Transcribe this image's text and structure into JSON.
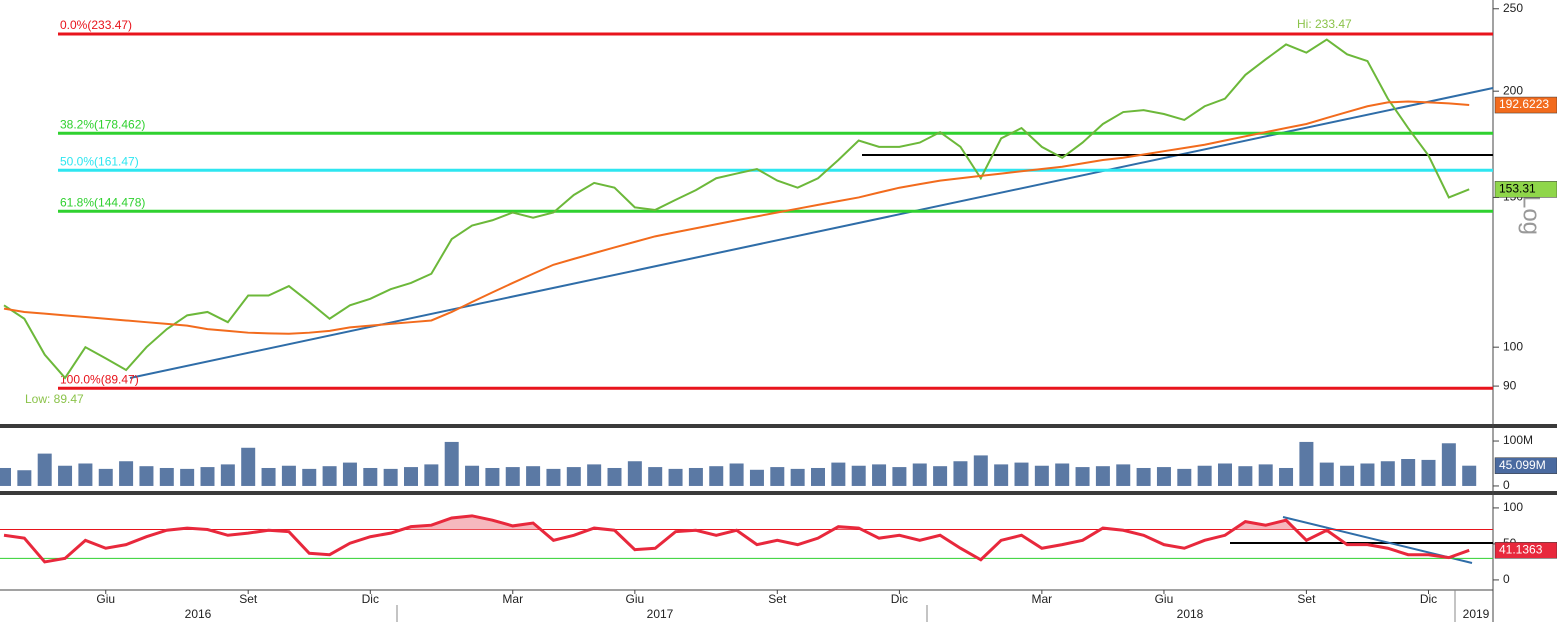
{
  "chart_data": [
    {
      "type": "line",
      "log_scale": true,
      "ylim": [
        81,
        256
      ],
      "yticks": [
        90,
        100,
        150,
        200,
        250
      ],
      "series": [
        {
          "color": "#6cb83a",
          "tag_color": "#8fd64a",
          "tag_text": "#000000",
          "values": [
            112,
            108,
            98,
            92,
            100,
            97,
            94,
            100,
            105,
            109,
            110,
            107,
            115,
            115,
            118,
            113,
            108,
            112,
            114,
            117,
            119,
            122,
            134,
            139,
            141,
            144,
            142,
            144,
            151,
            156,
            154,
            146,
            145,
            149,
            153,
            158,
            160,
            162,
            157,
            154,
            158,
            166,
            175,
            172,
            172,
            174,
            179,
            172,
            158,
            176,
            181,
            172,
            167,
            174,
            183,
            189,
            190,
            188,
            185,
            192,
            196,
            209,
            218,
            227,
            222,
            230,
            221,
            217,
            196,
            181,
            168,
            150,
            153.31
          ]
        },
        {
          "color": "#f26b1d",
          "tag_color": "#f26b1d",
          "tag_text": "#ffffff",
          "values": [
            111,
            110,
            109.5,
            109,
            108.5,
            108,
            107.5,
            107,
            106.5,
            106,
            105,
            104.5,
            104,
            103.8,
            103.7,
            104,
            104.5,
            105.5,
            106,
            106.5,
            107,
            107.5,
            110,
            113,
            116,
            119,
            122,
            125,
            127,
            129,
            131,
            133,
            135,
            136.5,
            138,
            139.5,
            141,
            142.5,
            144,
            145.5,
            147,
            148.5,
            150,
            152,
            154,
            155.5,
            157,
            158,
            159,
            160,
            161,
            162,
            163,
            164.5,
            166,
            167,
            168.5,
            170,
            171.5,
            173,
            175,
            177,
            179,
            181,
            183,
            186,
            189,
            192,
            194,
            194.5,
            194,
            193.5,
            192.6223
          ]
        }
      ],
      "levels": [
        {
          "value": 233.47,
          "label": "0.0%(233.47)",
          "color": "#e8141c"
        },
        {
          "value": 178.462,
          "label": "38.2%(178.462)",
          "color": "#2fd12f"
        },
        {
          "value": 161.47,
          "label": "50.0%(161.47)",
          "color": "#2ee6f0"
        },
        {
          "value": 144.478,
          "label": "61.8%(144.478)",
          "color": "#2fd12f"
        },
        {
          "value": 89.47,
          "label": "100.0%(89.47)",
          "color": "#e8141c"
        }
      ],
      "annotations": [
        "Hi: 233.47",
        "Low: 89.47"
      ],
      "side_label": "Log"
    },
    {
      "type": "bar",
      "ylim": [
        -9000000,
        129000000
      ],
      "yticks": [
        0,
        {
          "value": 100000000,
          "label": "100M"
        }
      ],
      "color": "#5b79a4",
      "tag_color": "#4a6aa0",
      "values": [
        40000000,
        35000000,
        72000000,
        45000000,
        50000000,
        38000000,
        55000000,
        44000000,
        40000000,
        38000000,
        42000000,
        48000000,
        85000000,
        40000000,
        45000000,
        38000000,
        44000000,
        52000000,
        40000000,
        38000000,
        42000000,
        48000000,
        98000000,
        45000000,
        40000000,
        42000000,
        44000000,
        38000000,
        42000000,
        48000000,
        40000000,
        55000000,
        42000000,
        38000000,
        40000000,
        44000000,
        50000000,
        36000000,
        42000000,
        38000000,
        40000000,
        52000000,
        45000000,
        48000000,
        42000000,
        50000000,
        44000000,
        55000000,
        68000000,
        48000000,
        52000000,
        45000000,
        50000000,
        42000000,
        44000000,
        48000000,
        40000000,
        42000000,
        38000000,
        45000000,
        50000000,
        44000000,
        48000000,
        40000000,
        98000000,
        52000000,
        45000000,
        50000000,
        55000000,
        60000000,
        58000000,
        95000000,
        45099000
      ],
      "value_labels": [
        null,
        null,
        null,
        null,
        null,
        null,
        null,
        null,
        null,
        null,
        null,
        null,
        null,
        null,
        null,
        null,
        null,
        null,
        null,
        null,
        null,
        null,
        null,
        null,
        null,
        null,
        null,
        null,
        null,
        null,
        null,
        null,
        null,
        null,
        null,
        null,
        null,
        null,
        null,
        null,
        null,
        null,
        null,
        null,
        null,
        null,
        null,
        null,
        null,
        null,
        null,
        null,
        null,
        null,
        null,
        null,
        null,
        null,
        null,
        null,
        null,
        null,
        null,
        null,
        null,
        null,
        null,
        null,
        null,
        null,
        null,
        null,
        "45.099M"
      ]
    },
    {
      "type": "line",
      "ylim": [
        -14,
        111
      ],
      "yticks": [
        0,
        50,
        100
      ],
      "levels": [
        {
          "value": 70,
          "color": "#e8141c"
        },
        {
          "value": 30,
          "color": "#2fd12f"
        }
      ],
      "series": [
        {
          "color": "#e8283c",
          "tag_color": "#e8283c",
          "tag_text": "#ffffff",
          "values": [
            62,
            58,
            25,
            30,
            55,
            44,
            49,
            60,
            69,
            72,
            70,
            62,
            65,
            69,
            67,
            37,
            35,
            51,
            60,
            65,
            74,
            76,
            86,
            89,
            83,
            75,
            79,
            55,
            62,
            72,
            69,
            42,
            44,
            67,
            69,
            62,
            69,
            49,
            55,
            49,
            58,
            74,
            72,
            58,
            62,
            55,
            62,
            44,
            28,
            55,
            62,
            44,
            49,
            55,
            72,
            69,
            62,
            49,
            44,
            55,
            62,
            81,
            76,
            83,
            55,
            69,
            49,
            49,
            44,
            35,
            35,
            31,
            41.1363
          ]
        }
      ],
      "categories": [
        null,
        null,
        null,
        null,
        null,
        "Giu",
        null,
        null,
        null,
        null,
        null,
        null,
        "Set",
        null,
        null,
        null,
        null,
        null,
        "Dic",
        null,
        null,
        null,
        null,
        null,
        null,
        "Mar",
        null,
        null,
        null,
        null,
        null,
        "Giu",
        null,
        null,
        null,
        null,
        null,
        null,
        "Set",
        null,
        null,
        null,
        null,
        null,
        "Dic",
        null,
        null,
        null,
        null,
        null,
        null,
        "Mar",
        null,
        null,
        null,
        null,
        null,
        "Giu",
        null,
        null,
        null,
        null,
        null,
        null,
        "Set",
        null,
        null,
        null,
        null,
        null,
        "Dic",
        null,
        null
      ],
      "year_labels": [
        "2016",
        "2017",
        "2018",
        "2019"
      ]
    }
  ]
}
